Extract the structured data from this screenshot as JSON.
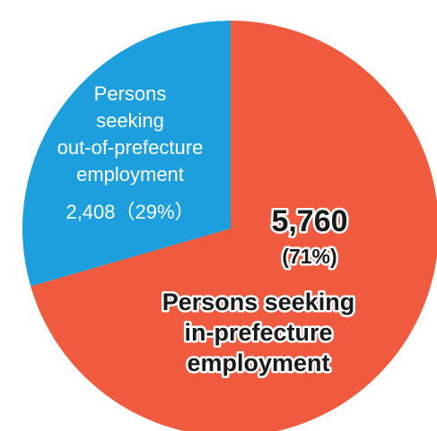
{
  "chart_data": {
    "type": "pie",
    "start_angle_deg": 0,
    "direction": "clockwise",
    "slices": [
      {
        "key": "in_prefecture",
        "value": 5760,
        "percent": 71,
        "color": "#f05a3e",
        "value_label": "5,760",
        "percent_label": "(71%)",
        "label_lines": [
          "Persons seeking",
          "in-prefecture",
          "employment"
        ]
      },
      {
        "key": "out_of_prefecture",
        "value": 2408,
        "percent": 29,
        "color": "#1c9fdc",
        "label_lines": [
          "Persons",
          "seeking",
          "out-of-prefecture",
          "employment",
          "2,408（29%）"
        ]
      }
    ]
  }
}
